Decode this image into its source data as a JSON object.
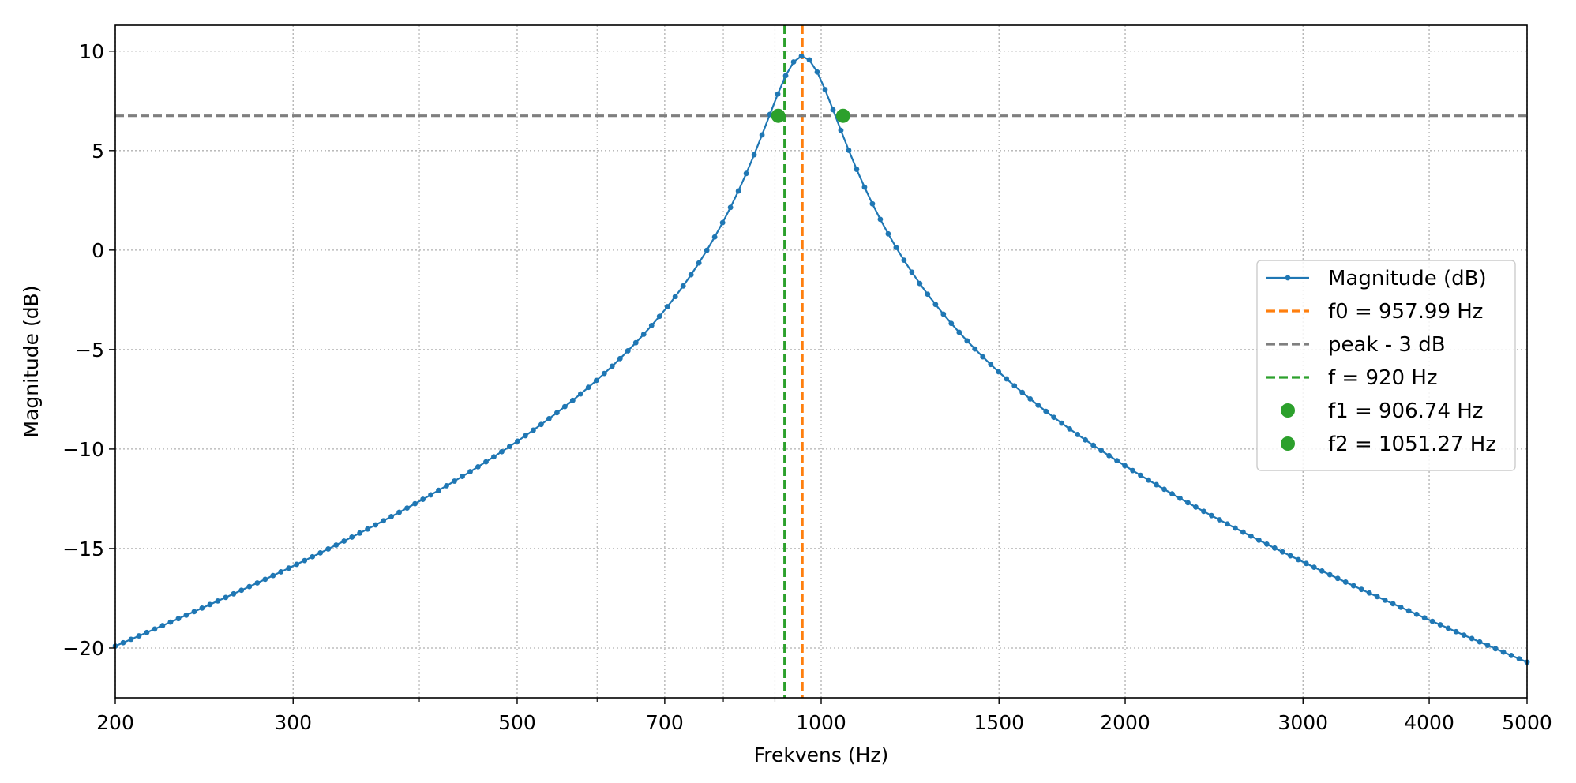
{
  "chart_data": {
    "type": "line",
    "xlabel": "Frekvens (Hz)",
    "ylabel": "Magnitude (dB)",
    "xscale": "log",
    "xlim": [
      200,
      5000
    ],
    "ylim": [
      -22.5,
      11.3
    ],
    "xticks": [
      200,
      300,
      500,
      700,
      1000,
      1500,
      2000,
      3000,
      4000,
      5000
    ],
    "xtick_labels": [
      "200",
      "300",
      "500",
      "700",
      "1000",
      "1500",
      "2000",
      "3000",
      "4000",
      "5000"
    ],
    "yticks": [
      10,
      5,
      0,
      -5,
      -10,
      -15,
      -20
    ],
    "ytick_labels": [
      "10",
      "5",
      "0",
      "−5",
      "−10",
      "−15",
      "−20"
    ],
    "grid": true,
    "legend_position": "center-right",
    "series": [
      {
        "name": "Magnitude (dB)",
        "color": "#1f77b4",
        "model": {
          "f0": 957.99,
          "peak_db": 9.75,
          "bandwidth_hz": 144.53,
          "fmin": 200,
          "fmax": 5000,
          "points": 180
        }
      }
    ],
    "reference_lines": [
      {
        "name": "f0 = 957.99 Hz",
        "orientation": "vertical",
        "value": 957.99,
        "color": "#ff7f0e",
        "style": "dashed"
      },
      {
        "name": "peak - 3 dB",
        "orientation": "horizontal",
        "value": 6.75,
        "color": "#7f7f7f",
        "style": "dashed"
      },
      {
        "name": "f = 920 Hz",
        "orientation": "vertical",
        "value": 920,
        "color": "#2ca02c",
        "style": "dashed"
      }
    ],
    "markers": [
      {
        "name": "f1 = 906.74 Hz",
        "x": 906.74,
        "y": 6.75,
        "color": "#2ca02c"
      },
      {
        "name": "f2 = 1051.27 Hz",
        "x": 1051.27,
        "y": 6.75,
        "color": "#2ca02c"
      }
    ],
    "legend": [
      {
        "label": "Magnitude (dB)",
        "kind": "line-marker",
        "color": "#1f77b4"
      },
      {
        "label": "f0 = 957.99 Hz",
        "kind": "dashed",
        "color": "#ff7f0e"
      },
      {
        "label": "peak - 3 dB",
        "kind": "dashed",
        "color": "#7f7f7f"
      },
      {
        "label": "f = 920 Hz",
        "kind": "dashed",
        "color": "#2ca02c"
      },
      {
        "label": "f1 = 906.74 Hz",
        "kind": "dot",
        "color": "#2ca02c"
      },
      {
        "label": "f2 = 1051.27 Hz",
        "kind": "dot",
        "color": "#2ca02c"
      }
    ]
  }
}
